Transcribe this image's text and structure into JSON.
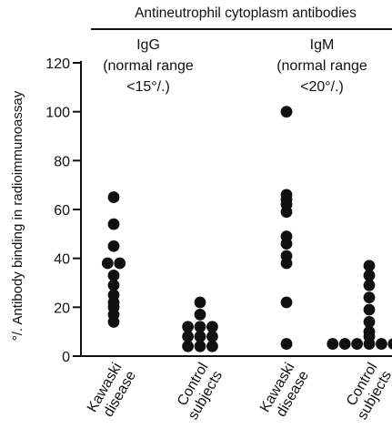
{
  "chart_data": {
    "type": "scatter",
    "title": "Antineutrophil cytoplasm antibodies",
    "ylabel": "°/. Antibody binding in radioimmunoassay",
    "ylim": [
      0,
      120
    ],
    "yticks": [
      0,
      20,
      40,
      60,
      80,
      100,
      120
    ],
    "grid": false,
    "legend": "none",
    "panels": [
      {
        "label": "IgG",
        "range_note": [
          "(normal range",
          "<15°/.)"
        ],
        "groups": [
          {
            "category": [
              "Kawaski",
              "disease"
            ],
            "values": [
              65,
              54,
              45,
              38,
              38,
              33,
              29,
              25,
              22,
              20,
              17,
              14
            ]
          },
          {
            "category": [
              "Control",
              "subjects"
            ],
            "values": [
              22,
              17,
              12,
              12,
              12,
              8,
              8,
              8,
              4,
              4,
              4
            ]
          }
        ]
      },
      {
        "label": "IgM",
        "range_note": [
          "(normal range",
          "<20°/.)"
        ],
        "groups": [
          {
            "category": [
              "Kawaski",
              "disease"
            ],
            "values": [
              100,
              66,
              64,
              62,
              59,
              49,
              46,
              41,
              38,
              22,
              5
            ]
          },
          {
            "category": [
              "Control",
              "subjects"
            ],
            "values": [
              37,
              33,
              29,
              24,
              19,
              14,
              10,
              8,
              5,
              5,
              5,
              5,
              5,
              5,
              5
            ]
          }
        ]
      }
    ]
  }
}
